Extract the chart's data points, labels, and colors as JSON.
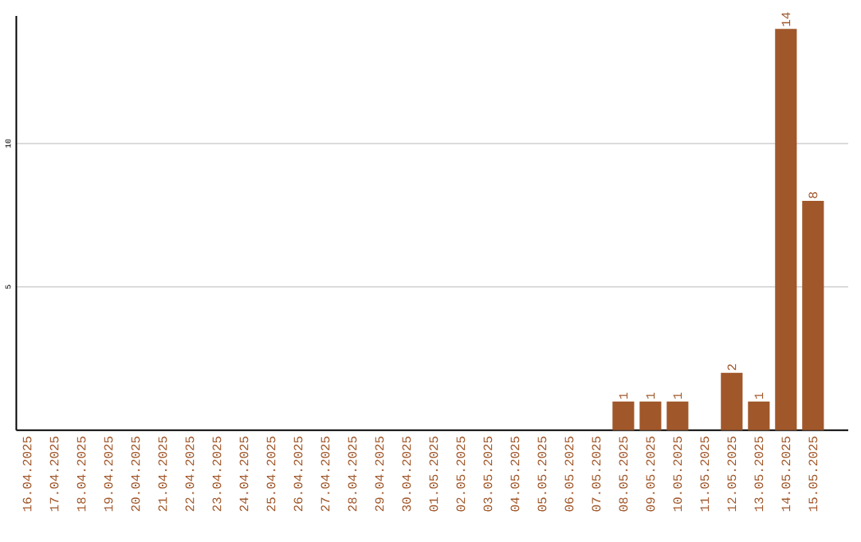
{
  "chart_data": {
    "type": "bar",
    "categories": [
      "16.04.2025",
      "17.04.2025",
      "18.04.2025",
      "19.04.2025",
      "20.04.2025",
      "21.04.2025",
      "22.04.2025",
      "23.04.2025",
      "24.04.2025",
      "25.04.2025",
      "26.04.2025",
      "27.04.2025",
      "28.04.2025",
      "29.04.2025",
      "30.04.2025",
      "01.05.2025",
      "02.05.2025",
      "03.05.2025",
      "04.05.2025",
      "05.05.2025",
      "06.05.2025",
      "07.05.2025",
      "08.05.2025",
      "09.05.2025",
      "10.05.2025",
      "11.05.2025",
      "12.05.2025",
      "13.05.2025",
      "14.05.2025",
      "15.05.2025"
    ],
    "values": [
      0,
      0,
      0,
      0,
      0,
      0,
      0,
      0,
      0,
      0,
      0,
      0,
      0,
      0,
      0,
      0,
      0,
      0,
      0,
      0,
      0,
      0,
      1,
      1,
      1,
      0,
      2,
      1,
      14,
      8
    ],
    "value_labels": [
      null,
      null,
      null,
      null,
      null,
      null,
      null,
      null,
      null,
      null,
      null,
      null,
      null,
      null,
      null,
      null,
      null,
      null,
      null,
      null,
      null,
      null,
      "1",
      "1",
      "1",
      null,
      "2",
      "1",
      "14",
      "8"
    ],
    "color": "#a0572a",
    "ylim": [
      0,
      14.45
    ],
    "yticks": [
      5,
      10
    ],
    "grid": "y"
  }
}
